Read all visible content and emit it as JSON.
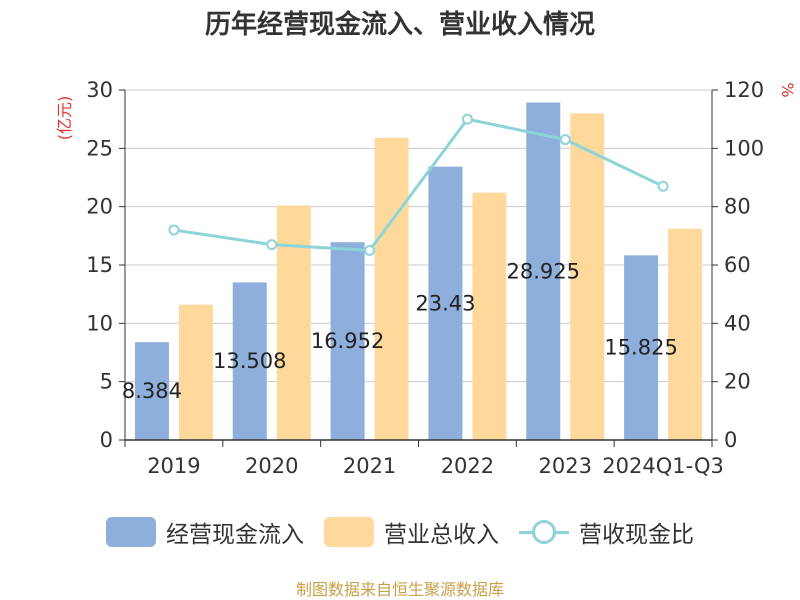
{
  "title": "历年经营现金流入、营业收入情况",
  "source_note": "制图数据来自恒生聚源数据库",
  "chart_data": {
    "type": "bar",
    "title": "历年经营现金流入、营业收入情况",
    "categories": [
      "2019",
      "2020",
      "2021",
      "2022",
      "2023",
      "2024Q1-Q3"
    ],
    "left_axis": {
      "unit_label": "(亿元)",
      "ylim": [
        0,
        30
      ],
      "ticks": [
        0,
        5,
        10,
        15,
        20,
        25,
        30
      ]
    },
    "right_axis": {
      "unit_label": "%",
      "ylim": [
        0,
        120
      ],
      "ticks": [
        0,
        20,
        40,
        60,
        80,
        100,
        120
      ]
    },
    "grid": true,
    "legend_position": "bottom",
    "series": [
      {
        "name": "经营现金流入",
        "type": "bar",
        "axis": "left",
        "color": "#8eaedb",
        "values": [
          8.384,
          13.508,
          16.952,
          23.43,
          28.925,
          15.825
        ],
        "data_labels": [
          "8.384",
          "13.508",
          "16.952",
          "23.43",
          "28.925",
          "15.825"
        ]
      },
      {
        "name": "营业总收入",
        "type": "bar",
        "axis": "left",
        "color": "#fed99b",
        "values": [
          11.6,
          20.1,
          25.9,
          21.2,
          28.0,
          18.1
        ]
      },
      {
        "name": "营收现金比",
        "type": "line",
        "axis": "right",
        "color": "#8dd4d8",
        "values": [
          72,
          67,
          65,
          110,
          103,
          87
        ]
      }
    ]
  }
}
